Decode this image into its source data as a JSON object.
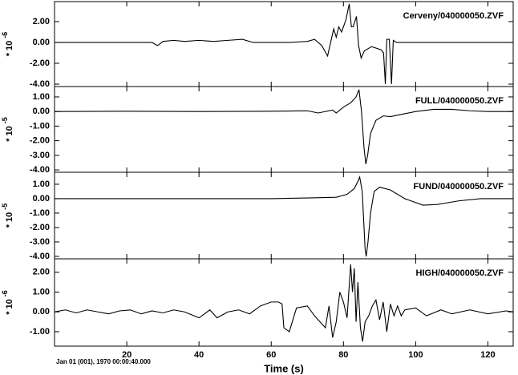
{
  "chart_data": [
    {
      "type": "line",
      "annotation": "Cerveny/040000050.ZVF",
      "ylabel": "* 10",
      "ylabel_exponent": "-6",
      "color": "#000000",
      "xlim": [
        0,
        127
      ],
      "xticks": [
        20,
        40,
        60,
        80,
        100,
        120
      ],
      "ylim": [
        -4.23,
        3.92
      ],
      "yticks": [
        {
          "value": 2,
          "label": "2.00"
        },
        {
          "value": 0,
          "label": "0.00"
        },
        {
          "value": -2,
          "label": "-2.00"
        },
        {
          "value": -4,
          "label": "-4.00"
        }
      ],
      "x": [
        0,
        10,
        20,
        27,
        28.5,
        29.3,
        30,
        33,
        36,
        40,
        44,
        48,
        52,
        55,
        60,
        65,
        70,
        72,
        74,
        75.6,
        77.3,
        78,
        78.7,
        79.5,
        80.7,
        81.6,
        82.2,
        82.7,
        83.6,
        84.2,
        84.9,
        85.8,
        87.8,
        90.4,
        91.1,
        91.6,
        92,
        92.7,
        93.3,
        93.8,
        94.7,
        100,
        110,
        120,
        127
      ],
      "values": [
        0,
        0,
        0,
        0,
        -0.3,
        -0.1,
        0.1,
        0.2,
        0.1,
        0.2,
        0.1,
        0.2,
        0.3,
        0,
        0,
        0,
        0.1,
        0.3,
        -0.3,
        -1.3,
        1.3,
        0.5,
        1.5,
        1.0,
        2.2,
        3.7,
        1.5,
        1.5,
        2.5,
        -0.3,
        -1.5,
        -0.8,
        -0.4,
        -0.7,
        -1.0,
        -4.0,
        0.3,
        0.3,
        -4.0,
        0.2,
        0,
        0,
        0,
        0,
        0
      ]
    },
    {
      "type": "line",
      "annotation": "FULL/040000050.ZVF",
      "ylabel": "* 10",
      "ylabel_exponent": "-5",
      "color": "#000000",
      "xlim": [
        0,
        127
      ],
      "xticks": [
        20,
        40,
        60,
        80,
        100,
        120
      ],
      "ylim": [
        -4.16,
        1.71
      ],
      "yticks": [
        {
          "value": 1,
          "label": "1.00"
        },
        {
          "value": 0,
          "label": "0.00"
        },
        {
          "value": -1,
          "label": "-1.00"
        },
        {
          "value": -2,
          "label": "-2.00"
        },
        {
          "value": -3,
          "label": "-3.00"
        },
        {
          "value": -4,
          "label": "-4.00"
        }
      ],
      "x": [
        0,
        20,
        40,
        60,
        70,
        73,
        77,
        78,
        80,
        82,
        83.5,
        84.3,
        85,
        85.7,
        86.2,
        86.7,
        87.5,
        89,
        91,
        93,
        96,
        100,
        105,
        110,
        115,
        120,
        127
      ],
      "values": [
        0,
        0.02,
        0,
        0.02,
        0.05,
        -0.1,
        0.1,
        -0.1,
        0.3,
        0.6,
        1.0,
        1.5,
        0,
        -2.5,
        -3.6,
        -3.0,
        -1.5,
        -0.6,
        -0.3,
        -0.35,
        -0.2,
        0,
        0.15,
        0.15,
        0.05,
        0,
        0
      ]
    },
    {
      "type": "line",
      "annotation": "FUND/040000050.ZVF",
      "ylabel": "* 10",
      "ylabel_exponent": "-5",
      "color": "#000000",
      "xlim": [
        0,
        127
      ],
      "xticks": [
        20,
        40,
        60,
        80,
        100,
        120
      ],
      "ylim": [
        -4.17,
        1.83
      ],
      "yticks": [
        {
          "value": 1,
          "label": "1.00"
        },
        {
          "value": 0,
          "label": "0.00"
        },
        {
          "value": -1,
          "label": "-1.00"
        },
        {
          "value": -2,
          "label": "-2.00"
        },
        {
          "value": -3,
          "label": "-3.00"
        },
        {
          "value": -4,
          "label": "-4.00"
        }
      ],
      "x": [
        0,
        30,
        60,
        70,
        78,
        81,
        83,
        84,
        84.5,
        85.2,
        85.6,
        86,
        86.3,
        86.8,
        87.5,
        88.5,
        90,
        93,
        97,
        102,
        106,
        112,
        118,
        127
      ],
      "values": [
        0,
        0,
        0,
        0.05,
        0.1,
        0.3,
        0.7,
        1.2,
        1.5,
        0.5,
        -1.5,
        -3.5,
        -4.0,
        -3,
        -1,
        0.5,
        0.8,
        0.6,
        0,
        -0.45,
        -0.4,
        -0.15,
        0,
        0
      ]
    },
    {
      "type": "line",
      "annotation": "HIGH/040000050.ZVF",
      "ylabel": "* 10",
      "ylabel_exponent": "-6",
      "color": "#000000",
      "xlabel": "Time (s)",
      "footnote": "Jan 01 (001), 1970 00:00:40.000",
      "xlim": [
        0,
        127
      ],
      "xticks": [
        20,
        40,
        60,
        80,
        100,
        120
      ],
      "ylim": [
        -1.73,
        2.68
      ],
      "yticks": [
        {
          "value": 2,
          "label": "2.00"
        },
        {
          "value": 1,
          "label": "1.00"
        },
        {
          "value": 0,
          "label": "0.00"
        },
        {
          "value": -1,
          "label": "-1.00"
        }
      ],
      "x": [
        0,
        3,
        6,
        9,
        12,
        15,
        18,
        21,
        24,
        27,
        30,
        33,
        36,
        40,
        43,
        45,
        48,
        51,
        54,
        57,
        60,
        62,
        63,
        63.5,
        65,
        67,
        70,
        72,
        74,
        75,
        76,
        77,
        78,
        79,
        80,
        81,
        82,
        82.5,
        83,
        83.5,
        84,
        84.7,
        85.3,
        86,
        87,
        88,
        89,
        90,
        91,
        92,
        93,
        94,
        95,
        96,
        97,
        100,
        103,
        107,
        110,
        115,
        120,
        125,
        127
      ],
      "values": [
        0,
        0.1,
        -0.05,
        0.1,
        0,
        -0.1,
        0.05,
        0.1,
        -0.1,
        0.05,
        -0.05,
        0.1,
        0,
        -0.3,
        0.1,
        -0.3,
        0,
        0.1,
        -0.1,
        0.3,
        0.5,
        0.5,
        0.4,
        -0.8,
        -1.0,
        0.2,
        0.3,
        -0.2,
        -0.6,
        -0.8,
        0.3,
        -1.3,
        -0.5,
        1.0,
        0.5,
        -0.3,
        2.4,
        1.0,
        2.2,
        -0.5,
        1.5,
        -0.8,
        -1.5,
        -0.5,
        -0.2,
        0.3,
        0.6,
        -0.4,
        0.5,
        -1.0,
        0.4,
        -0.2,
        0.3,
        -0.2,
        0.1,
        0.2,
        -0.2,
        0.1,
        -0.1,
        0.1,
        -0.1,
        0.05,
        0
      ]
    }
  ]
}
